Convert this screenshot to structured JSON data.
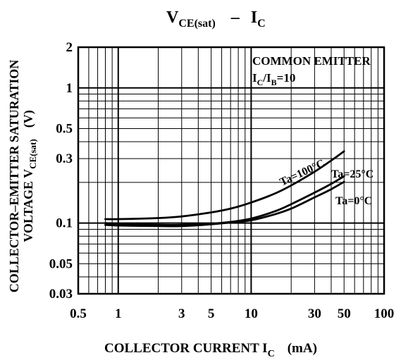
{
  "chart_data": {
    "type": "line",
    "title": {
      "main": "V",
      "sub": "CE(sat)",
      "dash": "–",
      "main2": "I",
      "sub2": "C"
    },
    "xlabel": {
      "text": "COLLECTOR CURRENT I",
      "sub": "C",
      "unit": "(mA)"
    },
    "ylabel": {
      "line1": "COLLECTOR–EMITTER SATURATION",
      "line2_a": "VOLTAGE V",
      "line2_sub": "CE(sat)",
      "line2_b": "(V)"
    },
    "x_scale": "log",
    "y_scale": "log",
    "xlim": [
      0.5,
      100
    ],
    "ylim": [
      0.03,
      2
    ],
    "x_ticks": [
      {
        "value": 0.5,
        "label": "0.5"
      },
      {
        "value": 1,
        "label": "1"
      },
      {
        "value": 3,
        "label": "3"
      },
      {
        "value": 5,
        "label": "5"
      },
      {
        "value": 10,
        "label": "10"
      },
      {
        "value": 30,
        "label": "30"
      },
      {
        "value": 50,
        "label": "50"
      },
      {
        "value": 100,
        "label": "100"
      }
    ],
    "y_ticks": [
      {
        "value": 0.03,
        "label": "0.03"
      },
      {
        "value": 0.05,
        "label": "0.05"
      },
      {
        "value": 0.1,
        "label": "0.1"
      },
      {
        "value": 0.3,
        "label": "0.3"
      },
      {
        "value": 0.5,
        "label": "0.5"
      },
      {
        "value": 1,
        "label": "1"
      },
      {
        "value": 2,
        "label": "2"
      }
    ],
    "grid": true,
    "annotation": {
      "line1": "COMMON EMITTER",
      "line2_a": "I",
      "line2_sub_a": "C",
      "line2_b": "/I",
      "line2_sub_b": "B",
      "line2_c": "=10"
    },
    "series": [
      {
        "name": "Ta=100°C",
        "x": [
          0.8,
          1,
          2,
          3,
          5,
          7,
          10,
          15,
          20,
          30,
          40,
          50
        ],
        "y": [
          0.107,
          0.107,
          0.109,
          0.112,
          0.12,
          0.128,
          0.142,
          0.165,
          0.19,
          0.24,
          0.29,
          0.34
        ]
      },
      {
        "name": "Ta=25°C",
        "x": [
          0.8,
          1,
          2,
          3,
          5,
          7,
          10,
          15,
          20,
          30,
          40,
          50
        ],
        "y": [
          0.1,
          0.099,
          0.097,
          0.097,
          0.099,
          0.102,
          0.108,
          0.122,
          0.138,
          0.168,
          0.195,
          0.222
        ]
      },
      {
        "name": "Ta=0°C",
        "x": [
          0.8,
          1,
          2,
          3,
          5,
          7,
          10,
          15,
          20,
          30,
          40,
          50
        ],
        "y": [
          0.097,
          0.096,
          0.095,
          0.095,
          0.098,
          0.101,
          0.105,
          0.116,
          0.128,
          0.155,
          0.178,
          0.202
        ]
      }
    ]
  }
}
